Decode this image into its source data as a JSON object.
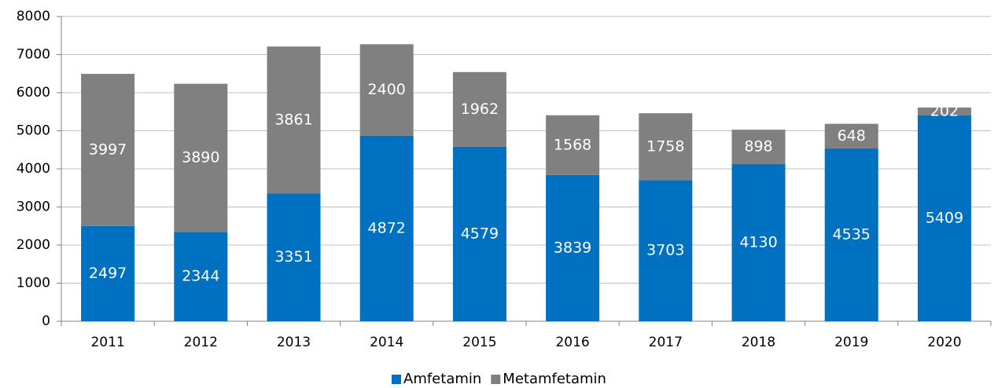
{
  "chart_data": {
    "type": "stacked_bar",
    "categories": [
      "2011",
      "2012",
      "2013",
      "2014",
      "2015",
      "2016",
      "2017",
      "2018",
      "2019",
      "2020"
    ],
    "series": [
      {
        "name": "Amfetamin",
        "color": "#0070c0",
        "values": [
          2497,
          2344,
          3351,
          4872,
          4579,
          3839,
          3703,
          4130,
          4535,
          5409
        ]
      },
      {
        "name": "Metamfetamin",
        "color": "#808080",
        "values": [
          3997,
          3890,
          3861,
          2400,
          1962,
          1568,
          1758,
          898,
          648,
          202
        ]
      }
    ],
    "ylim": [
      0,
      8000
    ],
    "yticks": [
      0,
      1000,
      2000,
      3000,
      4000,
      5000,
      6000,
      7000,
      8000
    ],
    "grid": true,
    "legend": "bottom"
  }
}
